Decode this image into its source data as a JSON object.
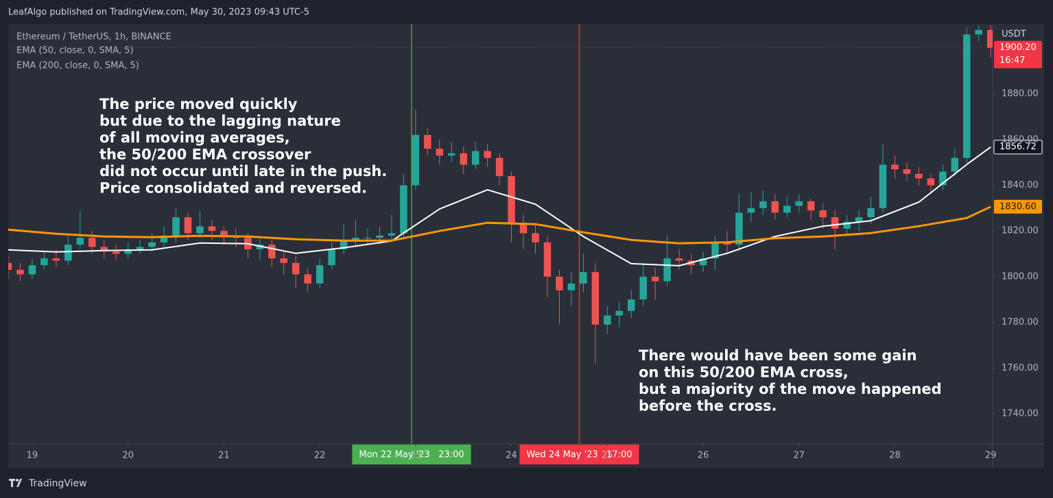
{
  "header": "LeafAlgo published on TradingView.com, May 30, 2023 09:43 UTC-5",
  "footer": "TradingView",
  "chart_data": {
    "type": "candlestick",
    "title": "Ethereum / TetherUS, 1h, BINANCE",
    "currency": "USDT",
    "countdown": "16:47",
    "up_color": "#26a69a",
    "down_color": "#ef5350",
    "grid": false,
    "xlim": [
      18.75,
      29.02
    ],
    "xticks": [
      19,
      20,
      21,
      22,
      23,
      24,
      25,
      26,
      27,
      28,
      29
    ],
    "ylim": [
      1726.8,
      1910.6
    ],
    "yticks": [
      {
        "value": 1740,
        "label": "1740.00"
      },
      {
        "value": 1760,
        "label": "1760.00"
      },
      {
        "value": 1780,
        "label": "1780.00"
      },
      {
        "value": 1800,
        "label": "1800.00"
      },
      {
        "value": 1820,
        "label": "1820.00"
      },
      {
        "value": 1840,
        "label": "1840.00"
      },
      {
        "value": 1860,
        "label": "1860.00"
      },
      {
        "value": 1880,
        "label": "1880.00"
      }
    ],
    "x": [
      18.75,
      18.875,
      19,
      19.125,
      19.25,
      19.375,
      19.5,
      19.625,
      19.75,
      19.875,
      20,
      20.125,
      20.25,
      20.375,
      20.5,
      20.625,
      20.75,
      20.875,
      21,
      21.125,
      21.25,
      21.375,
      21.5,
      21.625,
      21.75,
      21.875,
      22,
      22.125,
      22.25,
      22.375,
      22.5,
      22.625,
      22.75,
      22.875,
      23,
      23.125,
      23.25,
      23.375,
      23.5,
      23.625,
      23.75,
      23.875,
      24,
      24.125,
      24.25,
      24.375,
      24.5,
      24.625,
      24.75,
      24.875,
      25,
      25.125,
      25.25,
      25.375,
      25.5,
      25.625,
      25.75,
      25.875,
      26,
      26.125,
      26.25,
      26.375,
      26.5,
      26.625,
      26.75,
      26.875,
      27,
      27.125,
      27.25,
      27.375,
      27.5,
      27.625,
      27.75,
      27.875,
      28,
      28.125,
      28.25,
      28.375,
      28.5,
      28.625,
      28.75,
      28.875,
      29
    ],
    "open": [
      1806,
      1803,
      1801,
      1805,
      1808,
      1807,
      1814,
      1817,
      1813,
      1811,
      1810,
      1812,
      1813,
      1815,
      1818,
      1826,
      1819,
      1822,
      1820,
      1818,
      1817,
      1812,
      1814,
      1808,
      1806,
      1801,
      1797,
      1805,
      1812,
      1816,
      1817,
      1817,
      1818,
      1819,
      1840,
      1862,
      1856,
      1853,
      1854,
      1849,
      1855,
      1852,
      1844,
      1823,
      1819,
      1815,
      1800,
      1794,
      1797,
      1802,
      1779,
      1783,
      1785,
      1790,
      1800,
      1798,
      1808,
      1807,
      1805,
      1808,
      1815,
      1814,
      1828,
      1830,
      1833,
      1828,
      1831,
      1833,
      1829,
      1826,
      1821,
      1824,
      1826,
      1830,
      1849,
      1847,
      1845,
      1843,
      1840,
      1846,
      1852,
      1906,
      1908
    ],
    "high": [
      1809,
      1806,
      1808,
      1811,
      1812,
      1818,
      1829,
      1820,
      1816,
      1814,
      1815,
      1816,
      1819,
      1822,
      1830,
      1828,
      1829,
      1825,
      1822,
      1821,
      1819,
      1817,
      1816,
      1811,
      1809,
      1804,
      1808,
      1815,
      1823,
      1825,
      1821,
      1822,
      1827,
      1845,
      1873,
      1865,
      1860,
      1859,
      1857,
      1859,
      1858,
      1854,
      1846,
      1827,
      1823,
      1818,
      1803,
      1802,
      1810,
      1806,
      1787,
      1789,
      1794,
      1806,
      1804,
      1818,
      1812,
      1810,
      1811,
      1818,
      1820,
      1836,
      1837,
      1838,
      1836,
      1835,
      1836,
      1834,
      1832,
      1829,
      1827,
      1829,
      1835,
      1858,
      1853,
      1850,
      1848,
      1845,
      1849,
      1856,
      1909,
      1910,
      1910
    ],
    "low": [
      1799,
      1798,
      1799,
      1803,
      1804,
      1805,
      1812,
      1810,
      1808,
      1807,
      1808,
      1810,
      1811,
      1813,
      1815,
      1816,
      1817,
      1816,
      1814,
      1813,
      1808,
      1807,
      1804,
      1801,
      1795,
      1793,
      1795,
      1803,
      1810,
      1813,
      1814,
      1814,
      1815,
      1817,
      1838,
      1853,
      1849,
      1850,
      1845,
      1847,
      1848,
      1840,
      1815,
      1812,
      1810,
      1791,
      1779,
      1787,
      1793,
      1762,
      1775,
      1778,
      1782,
      1787,
      1790,
      1796,
      1803,
      1801,
      1802,
      1803,
      1810,
      1811,
      1824,
      1827,
      1825,
      1826,
      1828,
      1825,
      1821,
      1812,
      1818,
      1820,
      1823,
      1828,
      1843,
      1842,
      1840,
      1836,
      1838,
      1844,
      1850,
      1903,
      1896
    ],
    "close": [
      1803,
      1801,
      1805,
      1808,
      1807,
      1814,
      1817,
      1813,
      1811,
      1810,
      1812,
      1813,
      1815,
      1818,
      1826,
      1819,
      1822,
      1820,
      1818,
      1817,
      1812,
      1814,
      1808,
      1806,
      1801,
      1797,
      1805,
      1812,
      1816,
      1817,
      1817,
      1818,
      1819,
      1840,
      1862,
      1856,
      1853,
      1854,
      1849,
      1855,
      1852,
      1844,
      1823,
      1819,
      1815,
      1800,
      1794,
      1797,
      1802,
      1779,
      1783,
      1785,
      1790,
      1800,
      1798,
      1808,
      1807,
      1805,
      1808,
      1815,
      1814,
      1828,
      1830,
      1833,
      1828,
      1831,
      1833,
      1829,
      1826,
      1821,
      1824,
      1826,
      1830,
      1849,
      1847,
      1845,
      1843,
      1840,
      1846,
      1852,
      1906,
      1908,
      1900.2
    ],
    "series": [
      {
        "name": "EMA (50, close, 0, SMA, 5)",
        "color": "#ffffff",
        "x": [
          18.75,
          19.25,
          19.75,
          20.25,
          20.75,
          21.25,
          21.75,
          22.25,
          22.75,
          23.25,
          23.75,
          24.25,
          24.75,
          25.25,
          25.75,
          26.25,
          26.75,
          27.25,
          27.75,
          28.25,
          28.75,
          29
        ],
        "values": [
          1811.7,
          1810.8,
          1811.4,
          1811.7,
          1814.7,
          1814.4,
          1810.2,
          1812.6,
          1815.6,
          1829.6,
          1838,
          1831.7,
          1817.6,
          1805.7,
          1804.8,
          1810.2,
          1817.6,
          1822.1,
          1824.5,
          1832.6,
          1849.1,
          1856.72
        ]
      },
      {
        "name": "EMA (200, close, 0, SMA, 5)",
        "color": "#ff9800",
        "x": [
          18.75,
          19.25,
          19.75,
          20.25,
          20.75,
          21.25,
          21.75,
          22.25,
          22.75,
          23.25,
          23.75,
          24.25,
          24.75,
          25.25,
          25.75,
          26.25,
          26.75,
          27.25,
          27.75,
          28.25,
          28.75,
          29
        ],
        "values": [
          1820.6,
          1818.8,
          1817.6,
          1817.3,
          1817.9,
          1817.6,
          1816.4,
          1815.8,
          1815.8,
          1820,
          1823.6,
          1823,
          1819.4,
          1816.1,
          1814.6,
          1815,
          1816.8,
          1817.6,
          1819.1,
          1822.1,
          1825.7,
          1830.6
        ]
      }
    ],
    "price_labels": [
      {
        "value": 1900.2,
        "label": "1900.20",
        "color": "#f23645"
      },
      {
        "value": 1856.72,
        "label": "1856.72",
        "color": "#ffffff"
      },
      {
        "value": 1830.6,
        "label": "1830.60",
        "color": "#ff9800"
      }
    ],
    "markers": [
      {
        "x": 22.958,
        "label": "Mon 22 May '23   23:00",
        "color": "#4caf50"
      },
      {
        "x": 24.708,
        "label": "Wed 24 May '23   17:00",
        "color": "#f23645"
      }
    ],
    "annotations": [
      [
        "The price moved quickly",
        "but due to the lagging nature",
        "of all moving averages,",
        "the 50/200 EMA crossover",
        "did not occur until late in the push.",
        "Price consolidated and reversed."
      ],
      [
        "There would have been some gain",
        "on this 50/200 EMA cross,",
        "but a majority of the move happened",
        "before the cross."
      ]
    ]
  }
}
